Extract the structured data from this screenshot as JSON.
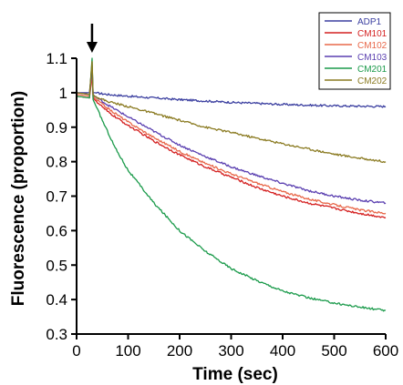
{
  "chart_data": {
    "type": "line",
    "xlabel": "Time (sec)",
    "ylabel": "Fluorescence (proportion)",
    "xlim": [
      0,
      600
    ],
    "ylim": [
      0.3,
      1.1
    ],
    "x_ticks": [
      "0",
      "100",
      "200",
      "300",
      "400",
      "500",
      "600"
    ],
    "y_ticks": [
      "0.3",
      "0.4",
      "0.5",
      "0.6",
      "0.7",
      "0.8",
      "0.9",
      "1",
      "1.1"
    ],
    "grid": false,
    "legend_position": "top-right",
    "annotation": {
      "type": "arrow",
      "x": 30,
      "y": 1.18,
      "points_down": true
    },
    "series": [
      {
        "name": "ADP1",
        "color": "#3b3fa0",
        "x": [
          0,
          25,
          30,
          32,
          35,
          60,
          100,
          150,
          200,
          250,
          300,
          350,
          400,
          450,
          500,
          550,
          600
        ],
        "y": [
          1.0,
          1.0,
          1.08,
          1.0,
          1.0,
          0.995,
          0.99,
          0.985,
          0.98,
          0.976,
          0.972,
          0.969,
          0.966,
          0.964,
          0.962,
          0.961,
          0.96
        ]
      },
      {
        "name": "CM101",
        "color": "#d42020",
        "x": [
          0,
          25,
          30,
          32,
          35,
          60,
          100,
          150,
          200,
          250,
          300,
          350,
          400,
          450,
          500,
          550,
          600
        ],
        "y": [
          0.99,
          0.985,
          1.05,
          0.985,
          0.98,
          0.945,
          0.905,
          0.86,
          0.82,
          0.785,
          0.755,
          0.725,
          0.7,
          0.68,
          0.665,
          0.65,
          0.638
        ]
      },
      {
        "name": "CM102",
        "color": "#e8684a",
        "x": [
          0,
          25,
          30,
          32,
          35,
          60,
          100,
          150,
          200,
          250,
          300,
          350,
          400,
          450,
          500,
          550,
          600
        ],
        "y": [
          0.995,
          0.99,
          1.06,
          0.99,
          0.985,
          0.955,
          0.915,
          0.87,
          0.83,
          0.795,
          0.765,
          0.738,
          0.713,
          0.692,
          0.675,
          0.66,
          0.65
        ]
      },
      {
        "name": "CM103",
        "color": "#5a3fb0",
        "x": [
          0,
          25,
          30,
          32,
          35,
          60,
          100,
          150,
          200,
          250,
          300,
          350,
          400,
          450,
          500,
          550,
          600
        ],
        "y": [
          1.0,
          0.995,
          1.07,
          0.995,
          0.99,
          0.965,
          0.93,
          0.888,
          0.848,
          0.815,
          0.785,
          0.76,
          0.737,
          0.716,
          0.7,
          0.688,
          0.68
        ]
      },
      {
        "name": "CM201",
        "color": "#1a9a4a",
        "x": [
          0,
          25,
          30,
          32,
          35,
          50,
          75,
          100,
          150,
          200,
          250,
          300,
          350,
          400,
          450,
          500,
          550,
          600
        ],
        "y": [
          0.99,
          0.985,
          1.1,
          0.98,
          0.97,
          0.92,
          0.84,
          0.775,
          0.68,
          0.6,
          0.54,
          0.49,
          0.455,
          0.425,
          0.405,
          0.39,
          0.378,
          0.368
        ]
      },
      {
        "name": "CM202",
        "color": "#8a7a20",
        "x": [
          0,
          25,
          30,
          32,
          35,
          60,
          100,
          150,
          200,
          250,
          300,
          350,
          400,
          450,
          500,
          550,
          600
        ],
        "y": [
          1.0,
          0.995,
          1.09,
          0.995,
          0.99,
          0.975,
          0.96,
          0.94,
          0.92,
          0.9,
          0.885,
          0.868,
          0.852,
          0.837,
          0.822,
          0.81,
          0.8
        ]
      }
    ]
  }
}
